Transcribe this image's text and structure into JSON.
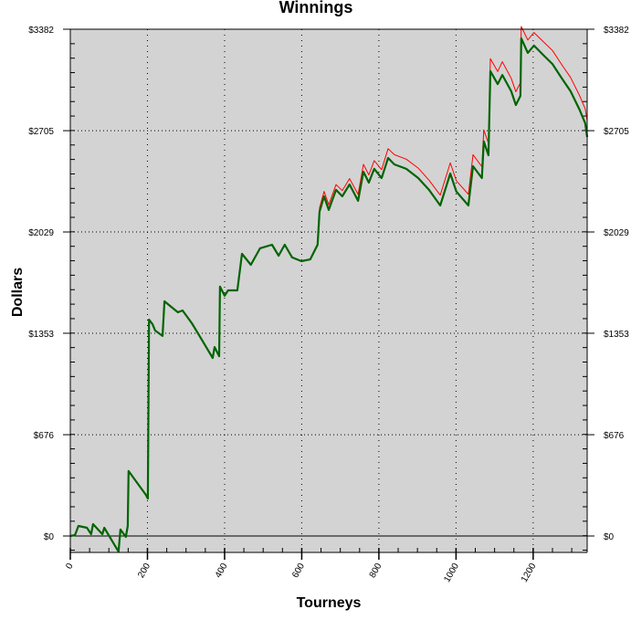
{
  "chart_data": {
    "type": "line",
    "title": "Winnings",
    "xlabel": "Tourneys",
    "ylabel": "Dollars",
    "xlim": [
      0,
      1340
    ],
    "ylim": [
      -110,
      3382
    ],
    "x_ticks": [
      0,
      200,
      400,
      600,
      800,
      1000,
      1200
    ],
    "x_tick_labels": [
      "0",
      "200",
      "400",
      "600",
      "800",
      "1000",
      "1200"
    ],
    "y_ticks": [
      0,
      676,
      1353,
      2029,
      2705,
      3382
    ],
    "y_tick_labels": [
      "$0",
      "$676",
      "$1353",
      "$2029",
      "$2705",
      "$3382"
    ],
    "grid": true,
    "background_color": "#d3d3d3",
    "series": [
      {
        "color": "#ff0000",
        "x": [
          0,
          12,
          21,
          43,
          54,
          59,
          83,
          88,
          125,
          130,
          144,
          149,
          151,
          196,
          201,
          204,
          213,
          220,
          239,
          244,
          279,
          291,
          315,
          338,
          369,
          374,
          386,
          388,
          400,
          409,
          433,
          445,
          468,
          492,
          523,
          540,
          556,
          575,
          599,
          622,
          641,
          646,
          658,
          670,
          689,
          705,
          724,
          746,
          760,
          774,
          788,
          807,
          824,
          840,
          871,
          902,
          930,
          959,
          985,
          1001,
          1032,
          1044,
          1067,
          1072,
          1084,
          1089,
          1108,
          1120,
          1143,
          1155,
          1167,
          1169,
          1186,
          1202,
          1226,
          1250,
          1273,
          1297,
          1320,
          1335,
          1340
        ],
        "y": [
          0,
          6,
          67,
          55,
          12,
          79,
          12,
          55,
          -104,
          43,
          -6,
          67,
          433,
          274,
          250,
          1444,
          1414,
          1371,
          1335,
          1566,
          1493,
          1505,
          1420,
          1322,
          1188,
          1261,
          1200,
          1664,
          1603,
          1639,
          1639,
          1883,
          1810,
          1920,
          1944,
          1871,
          1944,
          1859,
          1834,
          1846,
          1944,
          2190,
          2300,
          2210,
          2345,
          2305,
          2385,
          2280,
          2480,
          2410,
          2505,
          2445,
          2585,
          2545,
          2515,
          2455,
          2375,
          2275,
          2490,
          2370,
          2280,
          2545,
          2465,
          2710,
          2620,
          3185,
          3100,
          3165,
          3055,
          2965,
          3025,
          3400,
          3310,
          3360,
          3300,
          3240,
          3150,
          3060,
          2940,
          2850,
          2770
        ]
      },
      {
        "color": "#006400",
        "x": [
          0,
          12,
          21,
          43,
          54,
          59,
          83,
          88,
          125,
          130,
          144,
          149,
          151,
          196,
          201,
          204,
          213,
          220,
          239,
          244,
          279,
          291,
          315,
          338,
          369,
          374,
          386,
          388,
          400,
          409,
          433,
          445,
          468,
          492,
          523,
          540,
          556,
          575,
          599,
          622,
          641,
          646,
          658,
          670,
          689,
          705,
          724,
          746,
          760,
          774,
          788,
          807,
          824,
          840,
          871,
          902,
          930,
          959,
          985,
          1001,
          1032,
          1044,
          1067,
          1072,
          1084,
          1089,
          1108,
          1120,
          1143,
          1155,
          1167,
          1169,
          1186,
          1202,
          1226,
          1250,
          1273,
          1297,
          1320,
          1335,
          1340
        ],
        "y": [
          0,
          6,
          67,
          55,
          12,
          79,
          12,
          55,
          -104,
          43,
          -6,
          67,
          433,
          274,
          250,
          1444,
          1414,
          1371,
          1335,
          1566,
          1493,
          1505,
          1420,
          1322,
          1188,
          1261,
          1200,
          1664,
          1603,
          1639,
          1639,
          1883,
          1810,
          1920,
          1944,
          1871,
          1944,
          1859,
          1834,
          1846,
          1944,
          2163,
          2267,
          2176,
          2310,
          2267,
          2346,
          2237,
          2431,
          2358,
          2450,
          2389,
          2523,
          2480,
          2450,
          2389,
          2310,
          2206,
          2419,
          2298,
          2206,
          2468,
          2389,
          2633,
          2541,
          3102,
          3016,
          3077,
          2968,
          2876,
          2937,
          3321,
          3224,
          3273,
          3211,
          3150,
          3059,
          2968,
          2846,
          2754,
          2663
        ]
      }
    ]
  }
}
